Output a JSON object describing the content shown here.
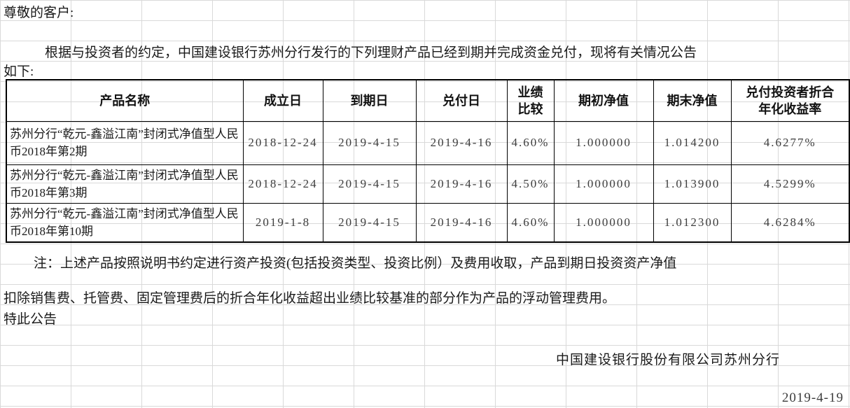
{
  "document": {
    "salutation": "尊敬的客户:",
    "intro_line1": "根据与投资者的约定，中国建设银行苏州分行发行的下列理财产品已经到期并完成资金兑付，现将有关情况公告",
    "intro_line2": "如下:",
    "note_line1": "注：上述产品按照说明书约定进行资产投资(包括投资类型、投资比例）及费用收取，产品到期日投资资产净值",
    "note_line2": "扣除销售费、托管费、固定管理费后的折合年化收益超出业绩比较基准的部分作为产品的浮动管理费用。",
    "closing": "特此公告",
    "issuer": "中国建设银行股份有限公司苏州分行",
    "date": "2019-4-19"
  },
  "table": {
    "headers": [
      "产品名称",
      "成立日",
      "到期日",
      "兑付日",
      "业绩\n比较",
      "期初净值",
      "期末净值",
      "兑付投资者折合\n年化收益率"
    ],
    "rows": [
      {
        "cells": [
          "苏州分行“乾元-鑫溢江南”封闭式净值型人民币2018年第2期",
          "2018-12-24",
          "2019-4-15",
          "2019-4-16",
          "4.60%",
          "1.000000",
          "1.014200",
          "4.6277%"
        ]
      },
      {
        "cells": [
          "苏州分行“乾元-鑫溢江南”封闭式净值型人民币2018年第3期",
          "2018-12-24",
          "2019-4-15",
          "2019-4-16",
          "4.50%",
          "1.000000",
          "1.013900",
          "4.5299%"
        ]
      },
      {
        "cells": [
          "苏州分行“乾元-鑫溢江南”封闭式净值型人民币2018年第10期",
          "2019-1-8",
          "2019-4-15",
          "2019-4-16",
          "4.60%",
          "1.000000",
          "1.012300",
          "4.6284%"
        ]
      }
    ]
  },
  "colors": {
    "grid_line": "#d9d9d9",
    "table_border": "#000000",
    "text": "#1a1a1a"
  }
}
